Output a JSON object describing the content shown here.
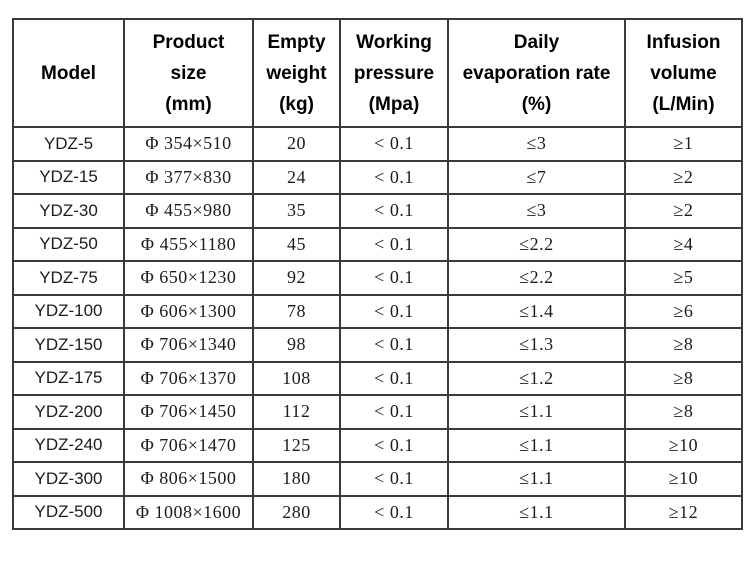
{
  "table": {
    "headers": [
      "Model",
      "Product\nsize\n(mm)",
      "Empty\nweight\n(kg)",
      "Working\npressure\n(Mpa)",
      "Daily\nevaporation rate\n(%)",
      "Infusion\nvolume\n(L/Min)"
    ],
    "rows": [
      [
        "YDZ-5",
        "Φ 354×510",
        "20",
        "< 0.1",
        "≤3",
        "≥1"
      ],
      [
        "YDZ-15",
        "Φ 377×830",
        "24",
        "< 0.1",
        "≤7",
        "≥2"
      ],
      [
        "YDZ-30",
        "Φ 455×980",
        "35",
        "< 0.1",
        "≤3",
        "≥2"
      ],
      [
        "YDZ-50",
        "Φ 455×1180",
        "45",
        "< 0.1",
        "≤2.2",
        "≥4"
      ],
      [
        "YDZ-75",
        "Φ 650×1230",
        "92",
        "< 0.1",
        "≤2.2",
        "≥5"
      ],
      [
        "YDZ-100",
        "Φ 606×1300",
        "78",
        "< 0.1",
        "≤1.4",
        "≥6"
      ],
      [
        "YDZ-150",
        "Φ 706×1340",
        "98",
        "< 0.1",
        "≤1.3",
        "≥8"
      ],
      [
        "YDZ-175",
        "Φ 706×1370",
        "108",
        "< 0.1",
        "≤1.2",
        "≥8"
      ],
      [
        "YDZ-200",
        "Φ 706×1450",
        "112",
        "< 0.1",
        "≤1.1",
        "≥8"
      ],
      [
        "YDZ-240",
        "Φ 706×1470",
        "125",
        "< 0.1",
        "≤1.1",
        "≥10"
      ],
      [
        "YDZ-300",
        "Φ 806×1500",
        "180",
        "< 0.1",
        "≤1.1",
        "≥10"
      ],
      [
        "YDZ-500",
        "Φ 1008×1600",
        "280",
        "< 0.1",
        "≤1.1",
        "≥12"
      ]
    ],
    "border_color": "#3a3a3a",
    "background_color": "#ffffff"
  }
}
